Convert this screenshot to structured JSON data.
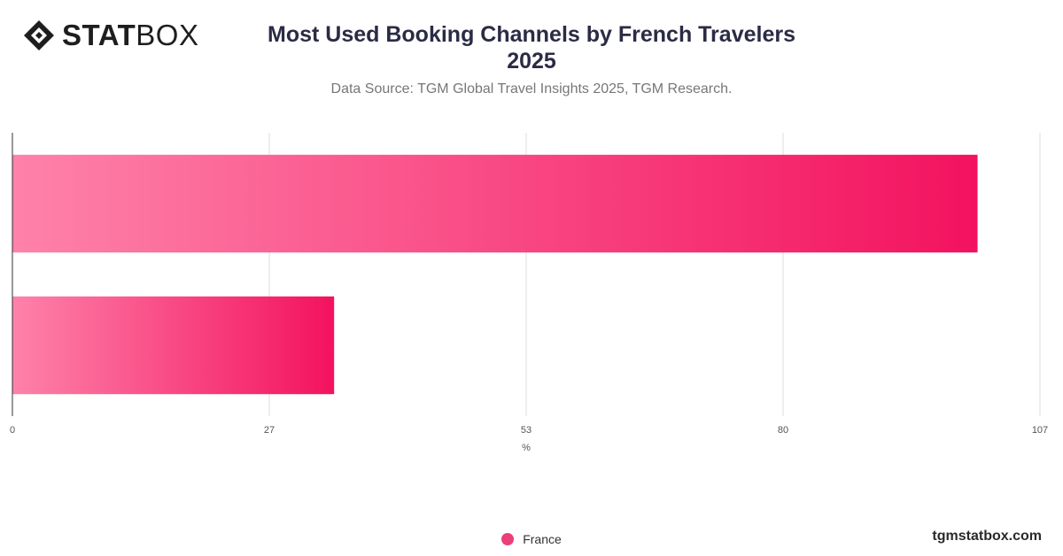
{
  "brand": {
    "logo_bold": "STAT",
    "logo_light": "BOX",
    "website": "tgmstatbox.com"
  },
  "header": {
    "title_line1": "Most Used Booking Channels by French Travelers",
    "title_line2": "2025",
    "subtitle": "Data Source: TGM Global Travel Insights 2025, TGM Research."
  },
  "chart_data": {
    "type": "bar",
    "orientation": "horizontal",
    "title": "Most Used Booking Channels by French Travelers 2025",
    "subtitle": "Data Source: TGM Global Travel Insights 2025, TGM Research.",
    "categories": [
      "",
      ""
    ],
    "series": [
      {
        "name": "France",
        "values": [
          100.5,
          33.5
        ]
      }
    ],
    "xlabel": "%",
    "ylabel": "",
    "xlim": [
      0,
      107
    ],
    "xticks": [
      "0",
      "27",
      "53",
      "80",
      "107"
    ],
    "xtick_values": [
      0,
      26.75,
      53.5,
      80.25,
      107
    ],
    "grid": true,
    "legend": "bottom-center",
    "colors": {
      "bar_start": "#fe82aa",
      "bar_end": "#f3125f",
      "grid": "#dddddd",
      "axis": "#333333"
    }
  }
}
